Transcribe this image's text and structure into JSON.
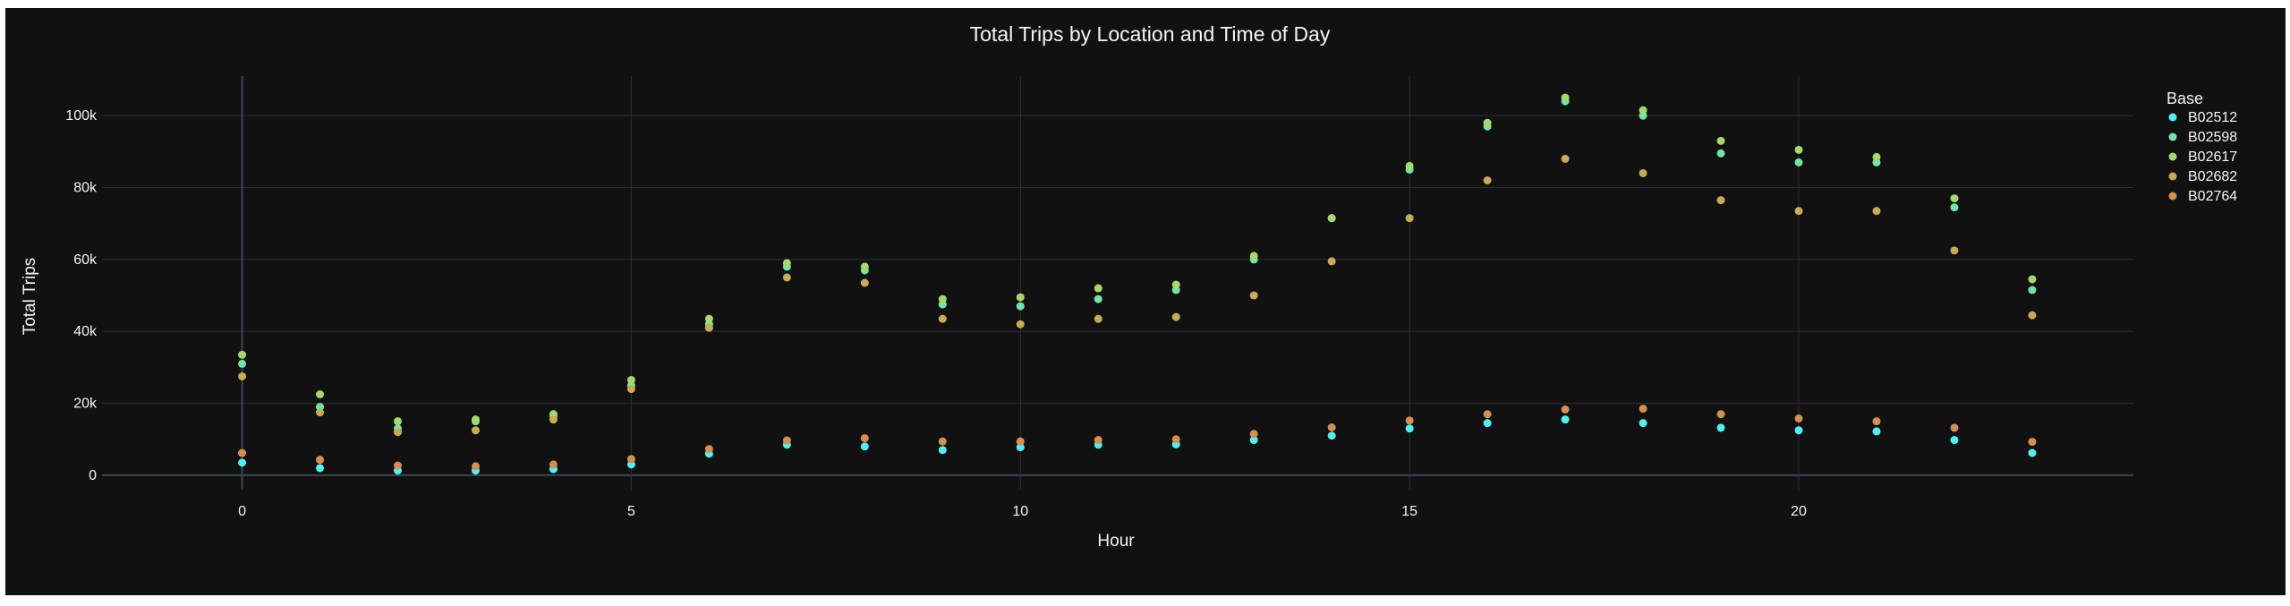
{
  "chart_data": {
    "type": "scatter",
    "title": "Total Trips by Location and Time of Day",
    "xlabel": "Hour",
    "ylabel": "Total Trips",
    "xlim": [
      -1.8,
      24.3
    ],
    "ylim": [
      -4000,
      111000
    ],
    "x_ticks": [
      0,
      5,
      10,
      15,
      20
    ],
    "y_ticks": [
      0,
      20000,
      40000,
      60000,
      80000,
      100000
    ],
    "y_tick_labels": [
      "0",
      "20k",
      "40k",
      "60k",
      "80k",
      "100k"
    ],
    "grid": true,
    "legend_title": "Base",
    "legend_position": "top-right",
    "x": [
      0,
      1,
      2,
      3,
      4,
      5,
      6,
      7,
      8,
      9,
      10,
      11,
      12,
      13,
      14,
      15,
      16,
      17,
      18,
      19,
      20,
      21,
      22,
      23
    ],
    "series": [
      {
        "name": "B02512",
        "color": "#4ff1f1",
        "values": [
          3500,
          2000,
          1300,
          1300,
          1700,
          3000,
          6000,
          8500,
          8000,
          7000,
          7800,
          8500,
          8600,
          9800,
          11000,
          13000,
          14500,
          15500,
          14500,
          13200,
          12500,
          12200,
          9800,
          6200
        ]
      },
      {
        "name": "B02598",
        "color": "#6ee6a9",
        "values": [
          31000,
          19000,
          13000,
          15000,
          16500,
          25000,
          42000,
          58000,
          57000,
          47500,
          47000,
          49000,
          51500,
          60000,
          71500,
          85000,
          97000,
          104000,
          100000,
          89500,
          87000,
          87000,
          74500,
          51500
        ]
      },
      {
        "name": "B02617",
        "color": "#a6d96a",
        "values": [
          33500,
          22500,
          15000,
          15500,
          17000,
          26500,
          43500,
          59000,
          58000,
          49000,
          49500,
          52000,
          53000,
          61000,
          71500,
          86000,
          98000,
          105000,
          101500,
          93000,
          90500,
          88500,
          77000,
          54500
        ]
      },
      {
        "name": "B02682",
        "color": "#c8ab53",
        "values": [
          27500,
          17500,
          12000,
          12500,
          15500,
          24000,
          41000,
          55000,
          53500,
          43500,
          42000,
          43500,
          44000,
          50000,
          59500,
          71500,
          82000,
          88000,
          84000,
          76500,
          73500,
          73500,
          62500,
          44500
        ]
      },
      {
        "name": "B02764",
        "color": "#d88e4e",
        "values": [
          6200,
          4300,
          2700,
          2500,
          3000,
          4500,
          7300,
          9700,
          10300,
          9400,
          9400,
          9800,
          10000,
          11500,
          13300,
          15200,
          17000,
          18300,
          18500,
          17000,
          15800,
          15000,
          13200,
          9300
        ]
      }
    ]
  }
}
